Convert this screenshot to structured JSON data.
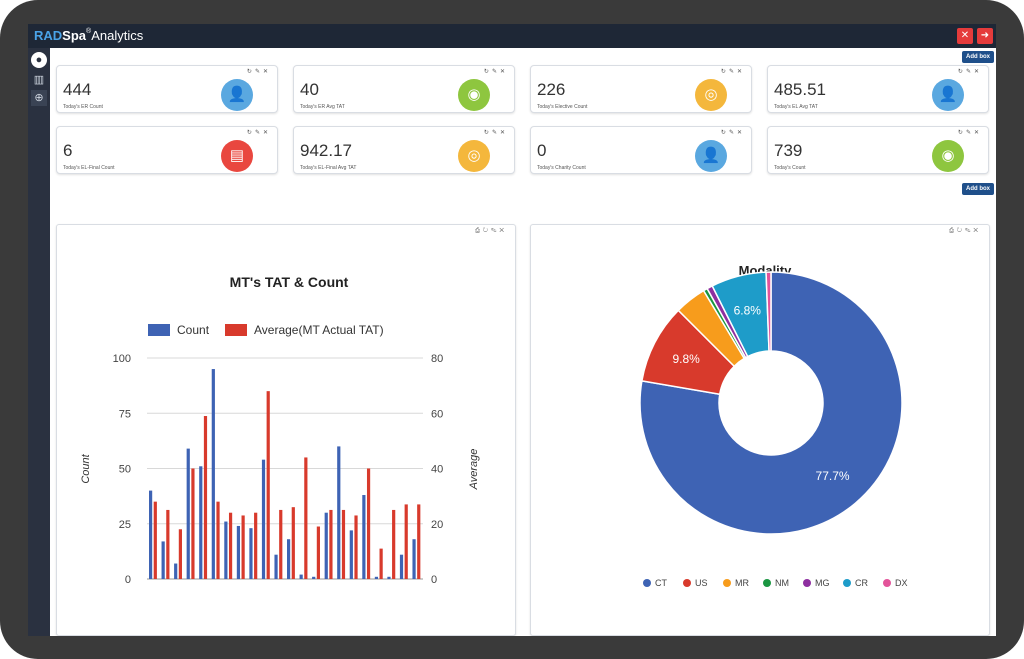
{
  "app": {
    "brand_part1": "RAD",
    "brand_part2": "Spa",
    "brand_part3": "Analytics",
    "header_icons": [
      "expand-icon",
      "logout-icon"
    ]
  },
  "sidebar": {
    "icons": [
      "user-avatar-icon",
      "building-icon",
      "circle-plus-icon"
    ]
  },
  "add_box_label": "Add box",
  "card_tool_icons": [
    "refresh-icon",
    "edit-icon",
    "close-icon"
  ],
  "cards": [
    {
      "value": "444",
      "label": "Today's ER Count",
      "icon": "user-add-icon",
      "color": "#5aa8e0"
    },
    {
      "value": "40",
      "label": "Today's ER Avg TAT",
      "icon": "timer-icon",
      "color": "#8ec63f"
    },
    {
      "value": "226",
      "label": "Today's Elective Count",
      "icon": "dish-icon",
      "color": "#f4b73c"
    },
    {
      "value": "485.51",
      "label": "Today's EL Avg TAT",
      "icon": "user-add-icon",
      "color": "#5aa8e0"
    },
    {
      "value": "6",
      "label": "Today's EL-Final Count",
      "icon": "clipboard-icon",
      "color": "#e9473f"
    },
    {
      "value": "942.17",
      "label": "Today's EL-Final Avg TAT",
      "icon": "dish-icon",
      "color": "#f4b73c"
    },
    {
      "value": "0",
      "label": "Today's Charity Count",
      "icon": "user-add-icon",
      "color": "#5aa8e0"
    },
    {
      "value": "739",
      "label": "Today's Count",
      "icon": "timer-icon",
      "color": "#8ec63f"
    }
  ],
  "chart_data": [
    {
      "type": "bar",
      "title": "MT's TAT & Count",
      "ylabel": "Count",
      "y2label": "Average",
      "ylim": [
        0,
        100
      ],
      "y2lim": [
        0,
        80
      ],
      "yticks": [
        "100",
        "75",
        "50",
        "25",
        "0"
      ],
      "y2ticks": [
        "80",
        "60",
        "40",
        "20",
        "0"
      ],
      "grid": true,
      "legend_position": "top",
      "series": [
        {
          "name": "Count",
          "axis": "left",
          "color": "#3e63b4",
          "values": [
            40,
            17,
            7,
            59,
            51,
            95,
            26,
            24,
            23,
            54,
            11,
            18,
            2,
            1,
            30,
            60,
            22,
            38,
            1,
            1,
            11,
            18
          ]
        },
        {
          "name": "Average(MT Actual TAT)",
          "axis": "right",
          "color": "#d83a2c",
          "values": [
            28,
            25,
            18,
            40,
            59,
            28,
            24,
            23,
            24,
            68,
            25,
            26,
            44,
            19,
            25,
            25,
            23,
            40,
            11,
            25,
            27,
            27
          ]
        }
      ]
    },
    {
      "type": "pie",
      "title": "Modality",
      "donut": true,
      "legend_position": "bottom",
      "slices": [
        {
          "name": "CT",
          "value": 77.7,
          "label": "77.7%",
          "color": "#3e63b4"
        },
        {
          "name": "US",
          "value": 9.8,
          "label": "9.8%",
          "color": "#d83a2c"
        },
        {
          "name": "MR",
          "value": 3.9,
          "label": "",
          "color": "#f79c1c"
        },
        {
          "name": "NM",
          "value": 0.5,
          "label": "",
          "color": "#1a9641"
        },
        {
          "name": "MG",
          "value": 0.7,
          "label": "",
          "color": "#8e2fa0"
        },
        {
          "name": "CR",
          "value": 6.8,
          "label": "6.8%",
          "color": "#1e9cc9"
        },
        {
          "name": "DX",
          "value": 0.6,
          "label": "",
          "color": "#e3549a"
        }
      ]
    }
  ]
}
